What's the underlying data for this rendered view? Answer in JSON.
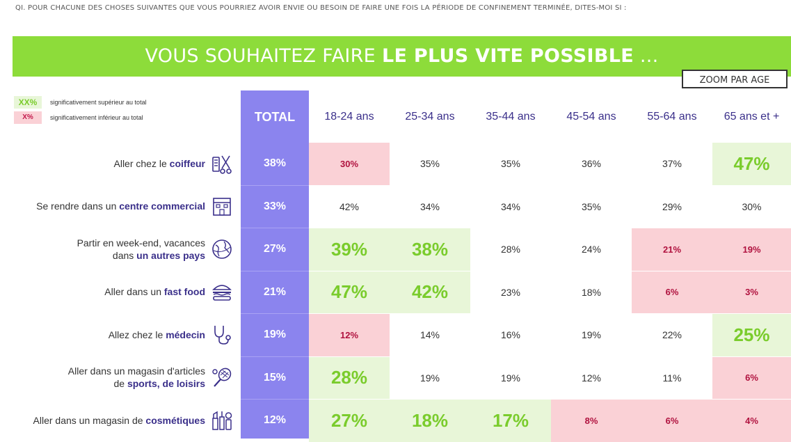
{
  "question": "QI. POUR CHACUNE DES CHOSES SUIVANTES QUE VOUS POURRIEZ AVOIR ENVIE OU BESOIN DE FAIRE UNE FOIS LA PÉRIODE DE CONFINEMENT TERMINÉE, DITES-MOI SI :",
  "banner": {
    "normal": "VOUS SOUHAITEZ FAIRE ",
    "bold": "LE PLUS VITE POSSIBLE",
    "suffix": " ..."
  },
  "zoom_label": "ZOOM PAR AGE",
  "legend": [
    {
      "swatch": "XX%",
      "text": "significativement supérieur au total",
      "type": "sup"
    },
    {
      "swatch": "X%",
      "text": "significativement inférieur au total",
      "type": "inf"
    }
  ],
  "colors": {
    "green_banner": "#8ddc3a",
    "total_column": "#8b84ee",
    "superior_bg": "#e8f6d8",
    "superior_text": "#7acc2c",
    "inferior_bg": "#fad1d6",
    "inferior_text": "#b0123f",
    "keyword": "#3a2f8a"
  },
  "chart_data": {
    "type": "table",
    "title": "VOUS SOUHAITEZ FAIRE LE PLUS VITE POSSIBLE ...",
    "columns": [
      "TOTAL",
      "18-24 ans",
      "25-34 ans",
      "35-44 ans",
      "45-54 ans",
      "55-64 ans",
      "65 ans et +"
    ],
    "rows": [
      {
        "pre": "Aller chez le ",
        "kw": "coiffeur",
        "post": "",
        "icon": "hairdresser-icon",
        "values": [
          "38%",
          "30%",
          "35%",
          "35%",
          "36%",
          "37%",
          "47%"
        ],
        "status": [
          "total",
          "inf",
          "",
          "",
          "",
          "",
          "sup"
        ]
      },
      {
        "pre": "Se rendre dans un ",
        "kw": "centre commercial",
        "post": "",
        "icon": "mall-icon",
        "values": [
          "33%",
          "42%",
          "34%",
          "34%",
          "35%",
          "29%",
          "30%"
        ],
        "status": [
          "total",
          "",
          "",
          "",
          "",
          "",
          ""
        ]
      },
      {
        "pre": "Partir en week-end, vacances",
        "line2pre": "dans ",
        "kw": "un autres pays",
        "post": "",
        "icon": "globe-icon",
        "values": [
          "27%",
          "39%",
          "38%",
          "28%",
          "24%",
          "21%",
          "19%"
        ],
        "status": [
          "total",
          "sup",
          "sup",
          "",
          "",
          "inf",
          "inf"
        ]
      },
      {
        "pre": "Aller dans un ",
        "kw": "fast food",
        "post": "",
        "icon": "burger-icon",
        "values": [
          "21%",
          "47%",
          "42%",
          "23%",
          "18%",
          "6%",
          "3%"
        ],
        "status": [
          "total",
          "sup",
          "sup",
          "",
          "",
          "inf",
          "inf"
        ]
      },
      {
        "pre": "Allez chez le ",
        "kw": "médecin",
        "post": "",
        "icon": "stethoscope-icon",
        "values": [
          "19%",
          "12%",
          "14%",
          "16%",
          "19%",
          "22%",
          "25%"
        ],
        "status": [
          "total",
          "inf",
          "",
          "",
          "",
          "",
          "sup"
        ]
      },
      {
        "pre": "Aller dans un magasin d'articles",
        "line2pre": "de ",
        "kw": "sports, de loisirs",
        "post": "",
        "icon": "tennis-racket-icon",
        "values": [
          "15%",
          "28%",
          "19%",
          "19%",
          "12%",
          "11%",
          "6%"
        ],
        "status": [
          "total",
          "sup",
          "",
          "",
          "",
          "",
          "inf"
        ]
      },
      {
        "pre": "Aller dans un magasin de ",
        "kw": "cosmétiques",
        "post": "",
        "icon": "cosmetics-icon",
        "values": [
          "12%",
          "27%",
          "18%",
          "17%",
          "8%",
          "6%",
          "4%"
        ],
        "status": [
          "total",
          "sup",
          "sup",
          "sup",
          "inf",
          "inf",
          "inf"
        ]
      }
    ]
  }
}
